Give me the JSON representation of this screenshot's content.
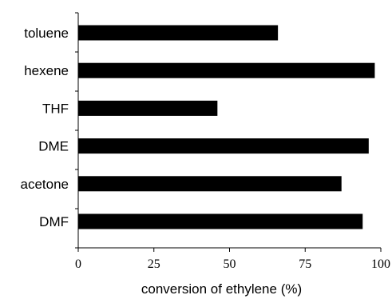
{
  "chart_data": {
    "type": "bar",
    "orientation": "horizontal",
    "categories": [
      "toluene",
      "hexene",
      "THF",
      "DME",
      "acetone",
      "DMF"
    ],
    "values": [
      66,
      98,
      46,
      96,
      87,
      94
    ],
    "xlabel": "conversion of ethylene (%)",
    "ylabel": "",
    "title": "",
    "xlim": [
      0,
      100
    ],
    "xticks": [
      "0",
      "25",
      "50",
      "75",
      "100"
    ],
    "grid": false,
    "legend": "none",
    "bar_color": "#000000"
  }
}
